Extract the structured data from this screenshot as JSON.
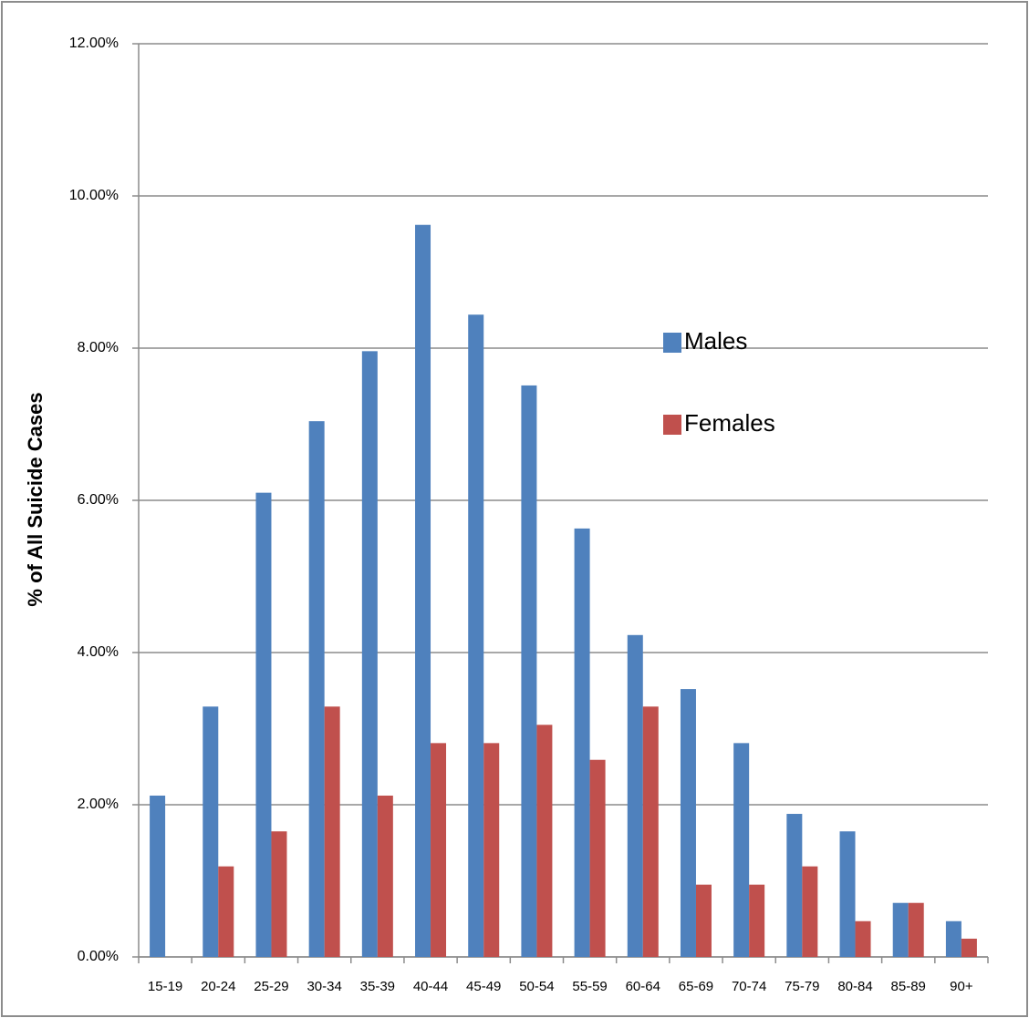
{
  "chart_data": {
    "type": "bar",
    "y_label": "% of All Suicide Cases",
    "categories": [
      "15-19",
      "20-24",
      "25-29",
      "30-34",
      "35-39",
      "40-44",
      "45-49",
      "50-54",
      "55-59",
      "60-64",
      "65-69",
      "70-74",
      "75-79",
      "80-84",
      "85-89",
      "90+"
    ],
    "series": [
      {
        "name": "Males",
        "color": "#4f81bd",
        "values": [
          2.12,
          3.29,
          6.1,
          7.04,
          7.96,
          9.62,
          8.44,
          7.51,
          5.63,
          4.23,
          3.52,
          2.81,
          1.88,
          1.65,
          0.71,
          0.47
        ]
      },
      {
        "name": "Females",
        "color": "#c0504d",
        "values": [
          0,
          1.19,
          1.65,
          3.29,
          2.12,
          2.81,
          2.81,
          3.05,
          2.59,
          3.29,
          0.95,
          0.95,
          1.19,
          0.47,
          0.71,
          0.24
        ]
      }
    ],
    "ylim": [
      0,
      12
    ],
    "yticks": [
      {
        "value": 0,
        "label": "0.00%"
      },
      {
        "value": 2,
        "label": "2.00%"
      },
      {
        "value": 4,
        "label": "4.00%"
      },
      {
        "value": 6,
        "label": "6.00%"
      },
      {
        "value": 8,
        "label": "8.00%"
      },
      {
        "value": 10,
        "label": "10.00%"
      },
      {
        "value": 12,
        "label": "12.00%"
      }
    ],
    "grid": true,
    "legend_position": "center-right"
  }
}
